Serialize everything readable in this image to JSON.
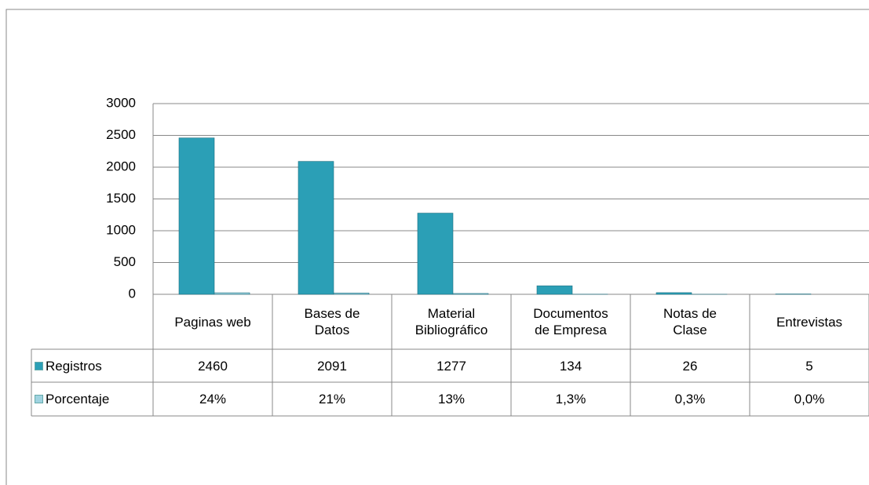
{
  "chart_data": {
    "type": "bar",
    "categories": [
      "Paginas web",
      "Bases de\nDatos",
      "Material\nBibliográfico",
      "Documentos\nde Empresa",
      "Notas de\nClase",
      "Entrevistas"
    ],
    "series": [
      {
        "name": "Registros",
        "color": "#2b9fb6",
        "values": [
          2460,
          2091,
          1277,
          134,
          26,
          5
        ]
      },
      {
        "name": "Porcentaje",
        "color": "#9fd3e0",
        "values": [
          24,
          21,
          13,
          1.3,
          0.3,
          0.0
        ],
        "value_labels": [
          "24%",
          "21%",
          "13%",
          "1,3%",
          "0,3%",
          "0,0%"
        ]
      }
    ],
    "ylim": [
      0,
      3000
    ],
    "yticks": [
      0,
      500,
      1000,
      1500,
      2000,
      2500,
      3000
    ],
    "grid": true
  }
}
